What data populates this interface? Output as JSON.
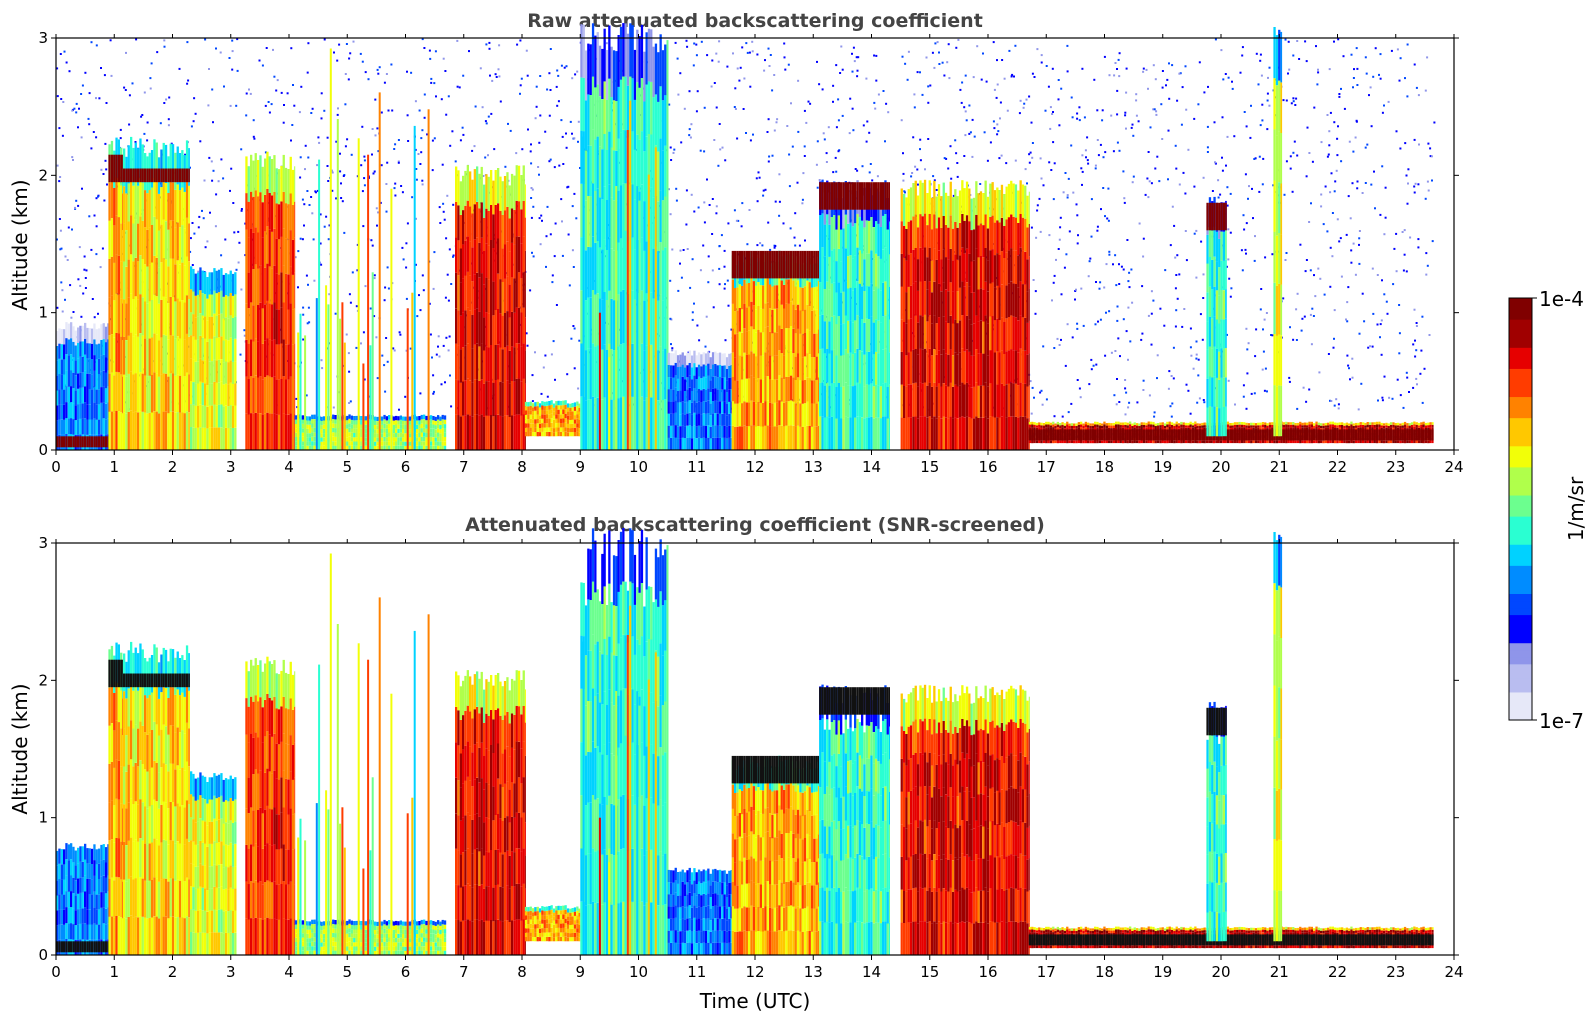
{
  "chart_data": [
    {
      "type": "heatmap",
      "title": "Raw attenuated backscattering coefficient",
      "xlabel": "",
      "ylabel": "Altitude (km)",
      "xlim": [
        0,
        24
      ],
      "ylim": [
        0,
        3
      ],
      "xticks": [
        0,
        1,
        2,
        3,
        4,
        5,
        6,
        7,
        8,
        9,
        10,
        11,
        12,
        13,
        14,
        15,
        16,
        17,
        18,
        19,
        20,
        21,
        22,
        23,
        24
      ],
      "yticks": [
        0,
        1,
        2,
        3
      ],
      "screened": false,
      "segments": [
        {
          "t0": 0.0,
          "t1": 0.9,
          "base": 0.0,
          "top": 0.9,
          "peak": 0.3,
          "base_layer": 0.05
        },
        {
          "t0": 0.9,
          "t1": 1.15,
          "base": 0.0,
          "top": 2.2,
          "peak": 0.7,
          "cap": [
            1.95,
            2.15
          ]
        },
        {
          "t0": 1.15,
          "t1": 2.3,
          "base": 0.0,
          "top": 2.2,
          "peak": 0.65,
          "cap": [
            1.95,
            2.05
          ]
        },
        {
          "t0": 2.3,
          "t1": 3.1,
          "base": 0.0,
          "top": 1.3,
          "peak": 0.6
        },
        {
          "t0": 3.25,
          "t1": 4.1,
          "base": 0.0,
          "top": 2.1,
          "peak": 0.8
        },
        {
          "t0": 4.1,
          "t1": 6.7,
          "base": 0.0,
          "top": 0.25,
          "peak": 0.55,
          "streaks": true
        },
        {
          "t0": 6.85,
          "t1": 8.05,
          "base": 0.0,
          "top": 2.0,
          "peak": 0.85
        },
        {
          "t0": 8.05,
          "t1": 9.0,
          "base": 0.1,
          "top": 0.35,
          "peak": 0.7
        },
        {
          "t0": 9.0,
          "t1": 10.5,
          "base": 0.0,
          "top": 3.0,
          "peak": 0.45,
          "streaks": true
        },
        {
          "t0": 10.5,
          "t1": 11.6,
          "base": 0.0,
          "top": 0.7,
          "peak": 0.3
        },
        {
          "t0": 11.6,
          "t1": 13.1,
          "base": 0.0,
          "top": 1.4,
          "peak": 0.7,
          "cap": [
            1.25,
            1.45
          ]
        },
        {
          "t0": 13.1,
          "t1": 14.3,
          "base": 0.0,
          "top": 1.9,
          "peak": 0.45,
          "cap": [
            1.75,
            1.95
          ]
        },
        {
          "t0": 14.5,
          "t1": 16.7,
          "base": 0.0,
          "top": 1.9,
          "peak": 0.85
        },
        {
          "t0": 16.7,
          "t1": 23.65,
          "base": 0.05,
          "top": 0.2,
          "peak": 0.9,
          "base_layer": 0.1
        },
        {
          "t0": 19.75,
          "t1": 20.1,
          "base": 0.1,
          "top": 1.8,
          "peak": 0.45,
          "cap": [
            1.6,
            1.8
          ]
        },
        {
          "t0": 20.9,
          "t1": 21.05,
          "base": 0.1,
          "top": 3.0,
          "peak": 0.6
        }
      ],
      "noise": "blue speckle above layers, sparse after 16.7 UTC"
    },
    {
      "type": "heatmap",
      "title": "Attenuated backscattering coefficient (SNR-screened)",
      "xlabel": "Time (UTC)",
      "ylabel": "Altitude (km)",
      "xlim": [
        0,
        24
      ],
      "ylim": [
        0,
        3
      ],
      "xticks": [
        0,
        1,
        2,
        3,
        4,
        5,
        6,
        7,
        8,
        9,
        10,
        11,
        12,
        13,
        14,
        15,
        16,
        17,
        18,
        19,
        20,
        21,
        22,
        23,
        24
      ],
      "yticks": [
        0,
        1,
        2,
        3
      ],
      "screened": true,
      "colorbar": {
        "label": "1/m/sr",
        "min_label": "1e-7",
        "max_label": "1e-4",
        "colors": [
          "#e6e8f8",
          "#b9bdf0",
          "#8f95ea",
          "#0000ff",
          "#0047ff",
          "#008cff",
          "#00d2ff",
          "#2affd2",
          "#6cff8f",
          "#b0ff4b",
          "#f2ff08",
          "#ffc800",
          "#ff8200",
          "#ff3c00",
          "#e60000",
          "#a00000",
          "#800000"
        ]
      }
    }
  ]
}
